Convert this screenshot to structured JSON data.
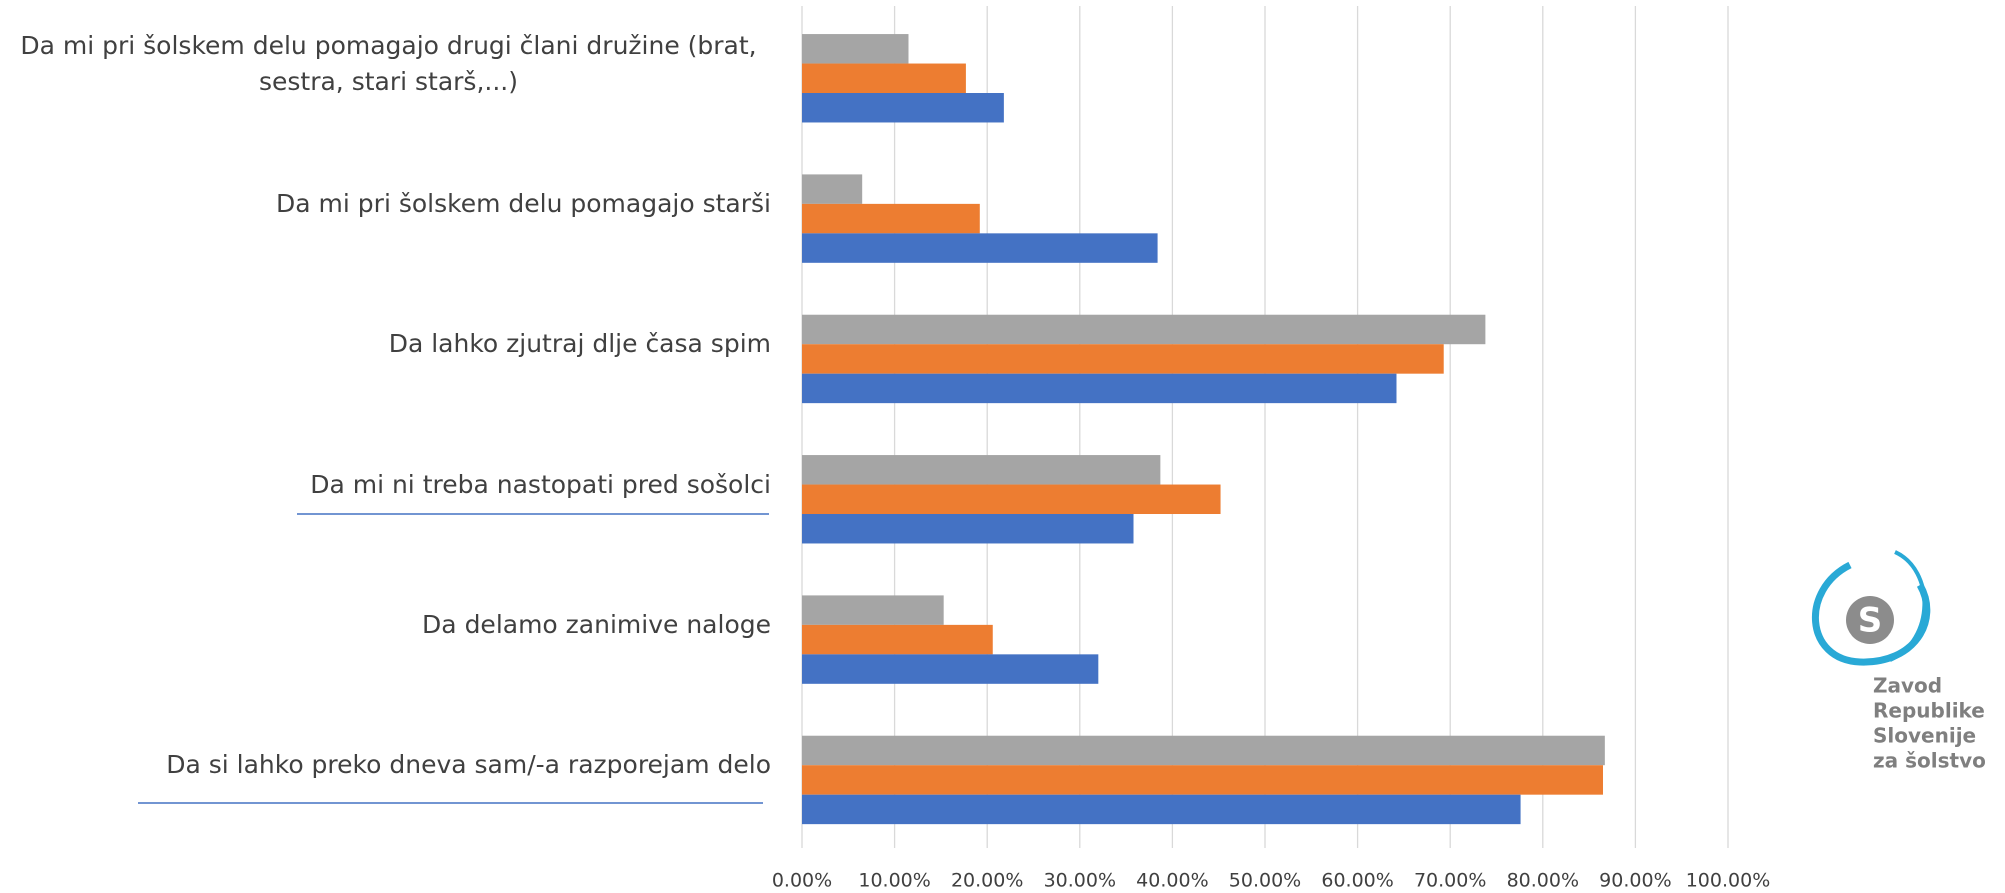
{
  "chart_data": {
    "type": "hbar",
    "categories": [
      "Da mi pri šolskem delu pomagajo drugi člani družine (brat, sestra, stari starš,...)",
      "Da mi pri šolskem delu pomagajo starši",
      "Da lahko zjutraj dlje časa spim",
      "Da mi ni treba nastopati pred sošolci",
      "Da delamo zanimive naloge",
      "Da si lahko preko dneva sam/-a razporejam delo"
    ],
    "series": [
      {
        "color": "#a5a5a5",
        "values": [
          11.5,
          6.5,
          73.8,
          38.7,
          15.3,
          86.7
        ]
      },
      {
        "color": "#ed7d31",
        "values": [
          17.7,
          19.2,
          69.3,
          45.2,
          20.6,
          86.5
        ]
      },
      {
        "color": "#4472c4",
        "values": [
          21.8,
          38.4,
          64.2,
          35.8,
          32.0,
          77.6
        ]
      }
    ],
    "xlim": [
      0,
      100
    ],
    "xticks": [
      {
        "value": 0,
        "label": "0.00%"
      },
      {
        "value": 10,
        "label": "10.00%"
      },
      {
        "value": 20,
        "label": "20.00%"
      },
      {
        "value": 30,
        "label": "30.00%"
      },
      {
        "value": 40,
        "label": "40.00%"
      },
      {
        "value": 50,
        "label": "50.00%"
      },
      {
        "value": 60,
        "label": "60.00%"
      },
      {
        "value": 70,
        "label": "70.00%"
      },
      {
        "value": 80,
        "label": "80.00%"
      },
      {
        "value": 90,
        "label": "90.00%"
      },
      {
        "value": 100,
        "label": "100.00%"
      }
    ],
    "grid": true
  },
  "logo": {
    "text": [
      "Zavod",
      "Republike",
      "Slovenije",
      "za šolstvo"
    ]
  }
}
